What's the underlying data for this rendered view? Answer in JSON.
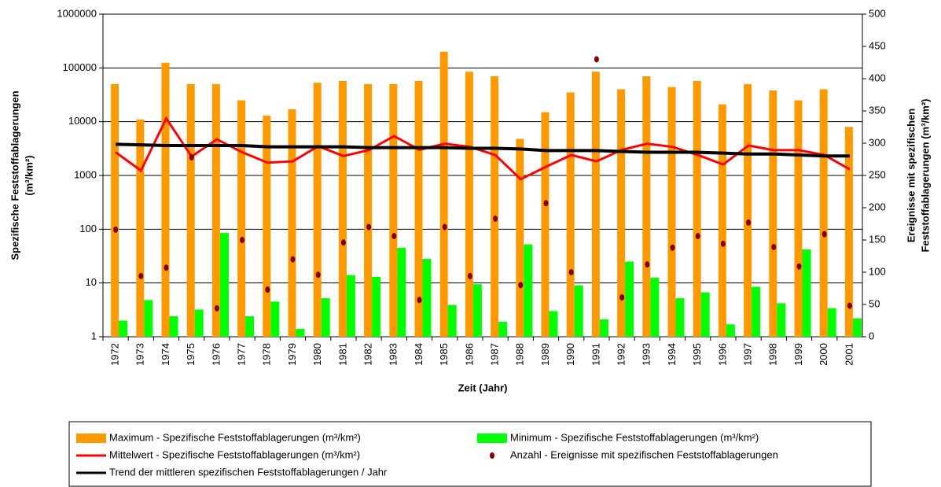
{
  "chart_data": {
    "type": "combo",
    "x_label": "Zeit (Jahr)",
    "y_label": [
      "Spezifische Feststoffablagerungen",
      "(m³/km²)"
    ],
    "y2_label": [
      "Ereignisse mit spezifischen",
      "Feststoffablagerungen (m³/km²)"
    ],
    "ylog": true,
    "grid": true,
    "categories": [
      "1972",
      "1973",
      "1974",
      "1975",
      "1976",
      "1977",
      "1978",
      "1979",
      "1980",
      "1981",
      "1982",
      "1983",
      "1984",
      "1985",
      "1986",
      "1987",
      "1988",
      "1989",
      "1990",
      "1991",
      "1992",
      "1993",
      "1994",
      "1995",
      "1996",
      "1997",
      "1998",
      "1999",
      "2000",
      "2001"
    ],
    "ylim": [
      1,
      1000000
    ],
    "yticks": [
      1,
      10,
      100,
      1000,
      10000,
      100000,
      1000000
    ],
    "y2lim": [
      0,
      500
    ],
    "y2ticks": [
      0,
      50,
      100,
      150,
      200,
      250,
      300,
      350,
      400,
      450,
      500
    ],
    "series": [
      {
        "name": "Maximum - Spezifische Feststoffablagerungen (m³/km²)",
        "type": "bar",
        "color": "#ff9900",
        "values": [
          50000,
          11000,
          125000,
          50000,
          50000,
          25000,
          13000,
          17000,
          53000,
          57000,
          50000,
          50000,
          57000,
          200000,
          85000,
          70000,
          4800,
          15000,
          35000,
          85000,
          40000,
          70000,
          44000,
          57000,
          21000,
          50000,
          38000,
          25000,
          40000,
          8000
        ]
      },
      {
        "name": "Minimum - Spezifische Feststoffablagerungen (m³/km²)",
        "type": "bar",
        "color": "#00ff00",
        "values": [
          2,
          4.8,
          2.4,
          3.2,
          85,
          2.4,
          4.5,
          1.4,
          5.2,
          14,
          13,
          45,
          28,
          3.9,
          9.5,
          1.9,
          52,
          3,
          9,
          2.1,
          25,
          12.5,
          5.2,
          6.7,
          1.7,
          8.5,
          4.2,
          42,
          3.4,
          2.2
        ]
      },
      {
        "name": "Mittelwert - Spezifische Feststoffablagerungen (m³/km²)",
        "type": "line",
        "color": "#ff0000",
        "values": [
          2700,
          1230,
          11500,
          2250,
          4700,
          2700,
          1730,
          1830,
          3500,
          2300,
          2950,
          5400,
          3000,
          3900,
          3400,
          2400,
          850,
          1450,
          2400,
          1830,
          3000,
          3900,
          3400,
          2400,
          1600,
          3600,
          2950,
          2950,
          2400,
          1300
        ]
      },
      {
        "name": "Anzahl - Ereignisse mit spezifischen Feststoffablagerungen",
        "type": "scatter",
        "axis": "y2",
        "color": "#800000",
        "values": [
          166,
          94,
          107,
          278,
          44,
          150,
          73,
          120,
          96,
          146,
          170,
          156,
          57,
          170,
          94,
          183,
          80,
          207,
          100,
          430,
          61,
          112,
          138,
          156,
          144,
          177,
          139,
          109,
          159,
          48
        ]
      },
      {
        "name": "Trend der mittleren spezifischen Feststoffablagerungen / Jahr",
        "type": "line",
        "color": "#000000",
        "values": [
          3800,
          3700,
          3600,
          3600,
          3600,
          3600,
          3400,
          3400,
          3400,
          3400,
          3300,
          3300,
          3300,
          3300,
          3200,
          3200,
          3100,
          2900,
          2900,
          2900,
          2800,
          2700,
          2700,
          2700,
          2600,
          2500,
          2500,
          2400,
          2300,
          2300
        ]
      }
    ]
  }
}
